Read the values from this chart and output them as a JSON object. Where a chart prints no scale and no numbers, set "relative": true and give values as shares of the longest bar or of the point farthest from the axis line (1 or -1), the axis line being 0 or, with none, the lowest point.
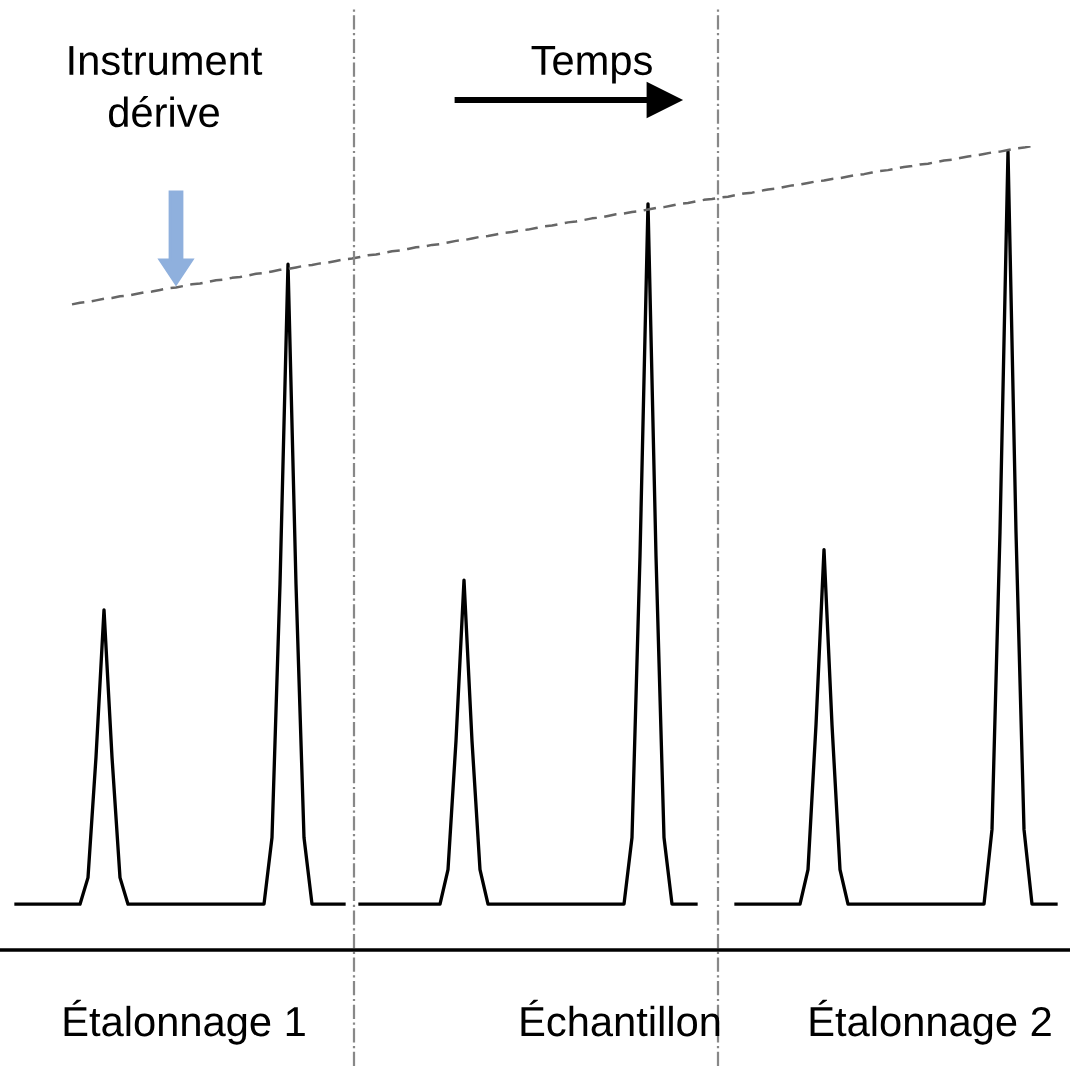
{
  "chart_data": {
    "type": "line",
    "relative": true,
    "categories": [
      null,
      null,
      null,
      null,
      null,
      null,
      null,
      null,
      null,
      null,
      null,
      null,
      null,
      null,
      null,
      null,
      null,
      null,
      null,
      null,
      null,
      null,
      null,
      null,
      null,
      null,
      null,
      null,
      null,
      null,
      null,
      null,
      null,
      null,
      null,
      null,
      null,
      null,
      null,
      null,
      null,
      null,
      null,
      null,
      null,
      null,
      null,
      null,
      null,
      null,
      null,
      null,
      null,
      null,
      null,
      null,
      null,
      null,
      null,
      null,
      null,
      null,
      null,
      null,
      null,
      null,
      null,
      null,
      null,
      null,
      null,
      null,
      null,
      null,
      null,
      null,
      null,
      null,
      null,
      null,
      null,
      null,
      null,
      null,
      null,
      null,
      null,
      null,
      null,
      null,
      null,
      null,
      null,
      null,
      null,
      null,
      null,
      null,
      null,
      null,
      null,
      null,
      null,
      null,
      null,
      null,
      null,
      null,
      null,
      null,
      null,
      null,
      null,
      null,
      null,
      null,
      null,
      null,
      null,
      null,
      null,
      null,
      null,
      null,
      null,
      null,
      null,
      null,
      null,
      null,
      null
    ],
    "series": [
      {
        "color": "#000000",
        "line_style": "solid",
        "values": [
          0.057,
          0.057,
          0.057,
          0.057,
          0.057,
          0.057,
          0.057,
          0.057,
          0.057,
          0.09,
          0.24,
          0.423,
          0.24,
          0.09,
          0.057,
          0.057,
          0.057,
          0.057,
          0.057,
          0.057,
          0.057,
          0.057,
          0.057,
          0.057,
          0.057,
          0.057,
          0.057,
          0.057,
          0.057,
          0.057,
          0.057,
          0.057,
          0.14,
          0.455,
          0.853,
          0.455,
          0.14,
          0.057,
          0.057,
          0.057,
          0.057,
          0.057,
          null,
          0.057,
          0.057,
          0.057,
          0.057,
          0.057,
          0.057,
          0.057,
          0.057,
          0.057,
          0.057,
          0.057,
          0.1,
          0.26,
          0.46,
          0.26,
          0.1,
          0.057,
          0.057,
          0.057,
          0.057,
          0.057,
          0.057,
          0.057,
          0.057,
          0.057,
          0.057,
          0.057,
          0.057,
          0.057,
          0.057,
          0.057,
          0.057,
          0.057,
          0.057,
          0.14,
          0.49,
          0.928,
          0.49,
          0.14,
          0.057,
          0.057,
          0.057,
          0.057,
          null,
          null,
          null,
          null,
          0.057,
          0.057,
          0.057,
          0.057,
          0.057,
          0.057,
          0.057,
          0.057,
          0.057,
          0.1,
          0.28,
          0.498,
          0.28,
          0.1,
          0.057,
          0.057,
          0.057,
          0.057,
          0.057,
          0.057,
          0.057,
          0.057,
          0.057,
          0.057,
          0.057,
          0.057,
          0.057,
          0.057,
          0.057,
          0.057,
          0.057,
          0.057,
          0.15,
          0.52,
          0.993,
          0.52,
          0.15,
          0.057,
          0.057,
          0.057,
          0.057
        ]
      },
      {
        "color": "#666666",
        "line_style": "dashed",
        "values": [
          null,
          null,
          null,
          null,
          null,
          null,
          null,
          0.803,
          0.805,
          0.806,
          0.808,
          0.81,
          0.811,
          0.813,
          0.814,
          0.816,
          0.818,
          0.819,
          0.821,
          0.823,
          0.824,
          0.826,
          0.828,
          0.829,
          0.831,
          0.833,
          0.834,
          0.836,
          0.837,
          0.839,
          0.841,
          0.842,
          0.844,
          0.846,
          0.847,
          0.849,
          0.851,
          0.852,
          0.854,
          0.855,
          0.857,
          0.859,
          0.86,
          0.862,
          0.864,
          0.865,
          0.867,
          0.869,
          0.87,
          0.872,
          0.874,
          0.875,
          0.877,
          0.878,
          0.88,
          0.882,
          0.883,
          0.885,
          0.887,
          0.888,
          0.89,
          0.892,
          0.893,
          0.895,
          0.896,
          0.898,
          0.9,
          0.901,
          0.903,
          0.905,
          0.906,
          0.908,
          0.91,
          0.911,
          0.913,
          0.915,
          0.916,
          0.918,
          0.919,
          0.921,
          0.923,
          0.924,
          0.926,
          0.928,
          0.929,
          0.931,
          0.933,
          0.934,
          0.936,
          0.937,
          0.939,
          0.941,
          0.942,
          0.944,
          0.946,
          0.947,
          0.949,
          0.951,
          0.952,
          0.954,
          0.956,
          0.957,
          0.959,
          0.96,
          0.962,
          0.964,
          0.965,
          0.967,
          0.969,
          0.97,
          0.972,
          0.974,
          0.975,
          0.977,
          0.978,
          0.98,
          0.982,
          0.983,
          0.985,
          0.987,
          0.988,
          0.99,
          0.992,
          0.993,
          0.995,
          0.997,
          0.998,
          1.0,
          null,
          null,
          null
        ]
      }
    ],
    "annotations": [
      "Instrument dérive",
      "Temps",
      "Étalonnage 1",
      "Échantillon",
      "Étalonnage 2"
    ]
  }
}
